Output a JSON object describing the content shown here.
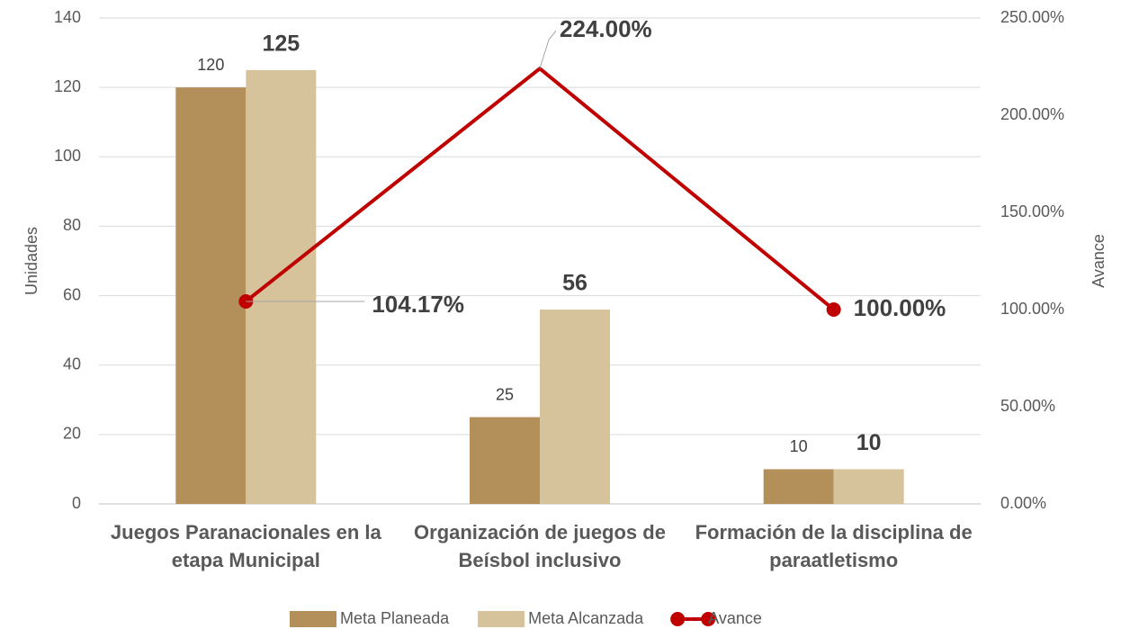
{
  "chart_data": {
    "type": "bar",
    "categories": [
      "Juegos Paranacionales en la etapa Municipal",
      "Organización de juegos de Beísbol inclusivo",
      "Formación de la disciplina de paraatletismo"
    ],
    "series": [
      {
        "name": "Meta Planeada",
        "type": "bar",
        "color": "#b38f5a",
        "values": [
          120,
          25,
          10
        ]
      },
      {
        "name": "Meta Alcanzada",
        "type": "bar",
        "color": "#d6c39b",
        "values": [
          125,
          56,
          10
        ]
      },
      {
        "name": "Avance",
        "type": "line",
        "axis": "y2",
        "color": "#c00000",
        "values": [
          104.17,
          224,
          100
        ],
        "value_labels": [
          "104.17%",
          "224.00%",
          "100.00%"
        ]
      }
    ],
    "ylabel": "Unidades",
    "y2label": "Avance",
    "ylim": [
      0,
      140
    ],
    "yticks": [
      0,
      20,
      40,
      60,
      80,
      100,
      120,
      140
    ],
    "y2lim": [
      0,
      250
    ],
    "y2ticks": [
      {
        "value": 0,
        "label": "0.00%"
      },
      {
        "value": 50,
        "label": "50.00%"
      },
      {
        "value": 100,
        "label": "100.00%"
      },
      {
        "value": 150,
        "label": "150.00%"
      },
      {
        "value": 200,
        "label": "200.00%"
      },
      {
        "value": 250,
        "label": "250.00%"
      }
    ],
    "grid": true,
    "legend": "bottom"
  }
}
